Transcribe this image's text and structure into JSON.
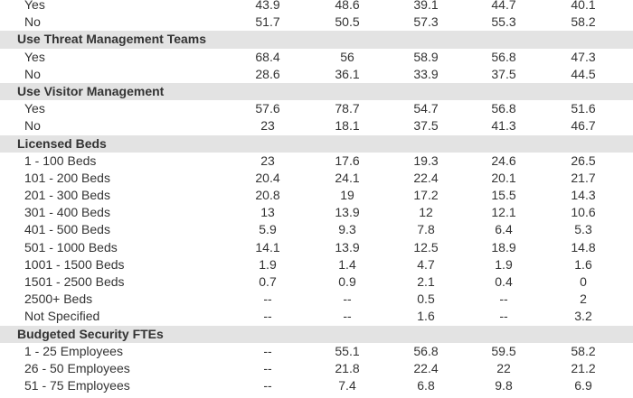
{
  "table": {
    "rows": [
      {
        "type": "data",
        "label": "Yes",
        "values": [
          "43.9",
          "48.6",
          "39.1",
          "44.7",
          "40.1"
        ]
      },
      {
        "type": "data",
        "label": "No",
        "values": [
          "51.7",
          "50.5",
          "57.3",
          "55.3",
          "58.2"
        ]
      },
      {
        "type": "section",
        "label": "Use Threat Management Teams"
      },
      {
        "type": "data",
        "label": "Yes",
        "values": [
          "68.4",
          "56",
          "58.9",
          "56.8",
          "47.3"
        ]
      },
      {
        "type": "data",
        "label": "No",
        "values": [
          "28.6",
          "36.1",
          "33.9",
          "37.5",
          "44.5"
        ]
      },
      {
        "type": "section",
        "label": "Use Visitor Management"
      },
      {
        "type": "data",
        "label": "Yes",
        "values": [
          "57.6",
          "78.7",
          "54.7",
          "56.8",
          "51.6"
        ]
      },
      {
        "type": "data",
        "label": "No",
        "values": [
          "23",
          "18.1",
          "37.5",
          "41.3",
          "46.7"
        ]
      },
      {
        "type": "section",
        "label": "Licensed Beds"
      },
      {
        "type": "data",
        "label": "1 - 100 Beds",
        "values": [
          "23",
          "17.6",
          "19.3",
          "24.6",
          "26.5"
        ]
      },
      {
        "type": "data",
        "label": "101 - 200 Beds",
        "values": [
          "20.4",
          "24.1",
          "22.4",
          "20.1",
          "21.7"
        ]
      },
      {
        "type": "data",
        "label": "201 - 300 Beds",
        "values": [
          "20.8",
          "19",
          "17.2",
          "15.5",
          "14.3"
        ]
      },
      {
        "type": "data",
        "label": "301 - 400 Beds",
        "values": [
          "13",
          "13.9",
          "12",
          "12.1",
          "10.6"
        ]
      },
      {
        "type": "data",
        "label": "401 - 500 Beds",
        "values": [
          "5.9",
          "9.3",
          "7.8",
          "6.4",
          "5.3"
        ]
      },
      {
        "type": "data",
        "label": "501 - 1000 Beds",
        "values": [
          "14.1",
          "13.9",
          "12.5",
          "18.9",
          "14.8"
        ]
      },
      {
        "type": "data",
        "label": "1001 - 1500 Beds",
        "values": [
          "1.9",
          "1.4",
          "4.7",
          "1.9",
          "1.6"
        ]
      },
      {
        "type": "data",
        "label": "1501 - 2500 Beds",
        "values": [
          "0.7",
          "0.9",
          "2.1",
          "0.4",
          "0"
        ]
      },
      {
        "type": "data",
        "label": "2500+ Beds",
        "values": [
          "--",
          "--",
          "0.5",
          "--",
          "2"
        ]
      },
      {
        "type": "data",
        "label": "Not Specified",
        "values": [
          "--",
          "--",
          "1.6",
          "--",
          "3.2"
        ]
      },
      {
        "type": "section",
        "label": "Budgeted Security FTEs"
      },
      {
        "type": "data",
        "label": "1 - 25 Employees",
        "values": [
          "--",
          "55.1",
          "56.8",
          "59.5",
          "58.2"
        ]
      },
      {
        "type": "data",
        "label": "26 - 50 Employees",
        "values": [
          "--",
          "21.8",
          "22.4",
          "22",
          "21.2"
        ]
      },
      {
        "type": "data",
        "label": "51 - 75 Employees",
        "values": [
          "--",
          "7.4",
          "6.8",
          "9.8",
          "6.9"
        ]
      }
    ]
  }
}
